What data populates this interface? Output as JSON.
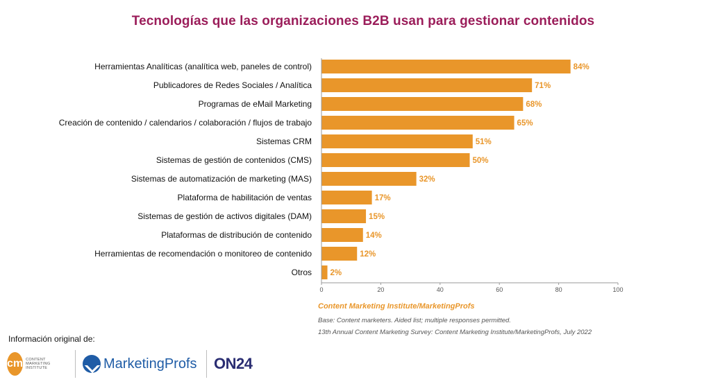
{
  "chart_data": {
    "type": "bar",
    "orientation": "horizontal",
    "title": "Tecnologías que las organizaciones B2B usan para gestionar contenidos",
    "categories": [
      "Herramientas Analíticas (analítica web, paneles de control)",
      "Publicadores de Redes Sociales / Analítica",
      "Programas de eMail Marketing",
      "Creación de contenido / calendarios / colaboración / flujos de trabajo",
      "Sistemas CRM",
      "Sistemas de gestión de contenidos (CMS)",
      "Sistemas de automatización de marketing (MAS)",
      "Plataforma de habilitación de ventas",
      "Sistemas de gestión de activos digitales (DAM)",
      "Plataformas de distribución de contenido",
      "Herramientas de recomendación o monitoreo de contenido",
      "Otros"
    ],
    "values": [
      84,
      71,
      68,
      65,
      51,
      50,
      32,
      17,
      15,
      14,
      12,
      2
    ],
    "value_labels": [
      "84%",
      "71%",
      "68%",
      "65%",
      "51%",
      "50%",
      "32%",
      "17%",
      "15%",
      "14%",
      "12%",
      "2%"
    ],
    "xlim": [
      0,
      100
    ],
    "xticks": [
      0,
      20,
      40,
      60,
      80,
      100
    ],
    "bar_color": "#e9962a",
    "label_color": "#e9962a",
    "grid": false
  },
  "source": {
    "title": "Content Marketing Institute/MarketingProfs",
    "base_note": "Base: Content marketers. Aided list; multiple responses permitted.",
    "survey_note": "13th Annual Content Marketing Survey: Content Marketing Institute/MarketingProfs, July 2022"
  },
  "footer": {
    "original_label": "Información original de:",
    "logos": {
      "cmi_badge": "cm",
      "cmi_text": "CONTENT MARKETING INSTITUTE",
      "marketingprofs": "MarketingProfs",
      "on24": "ON24"
    }
  },
  "colors": {
    "title": "#9b1d5a",
    "accent": "#e9962a",
    "mp_blue": "#1f5ca6",
    "on24": "#2a2d72"
  }
}
